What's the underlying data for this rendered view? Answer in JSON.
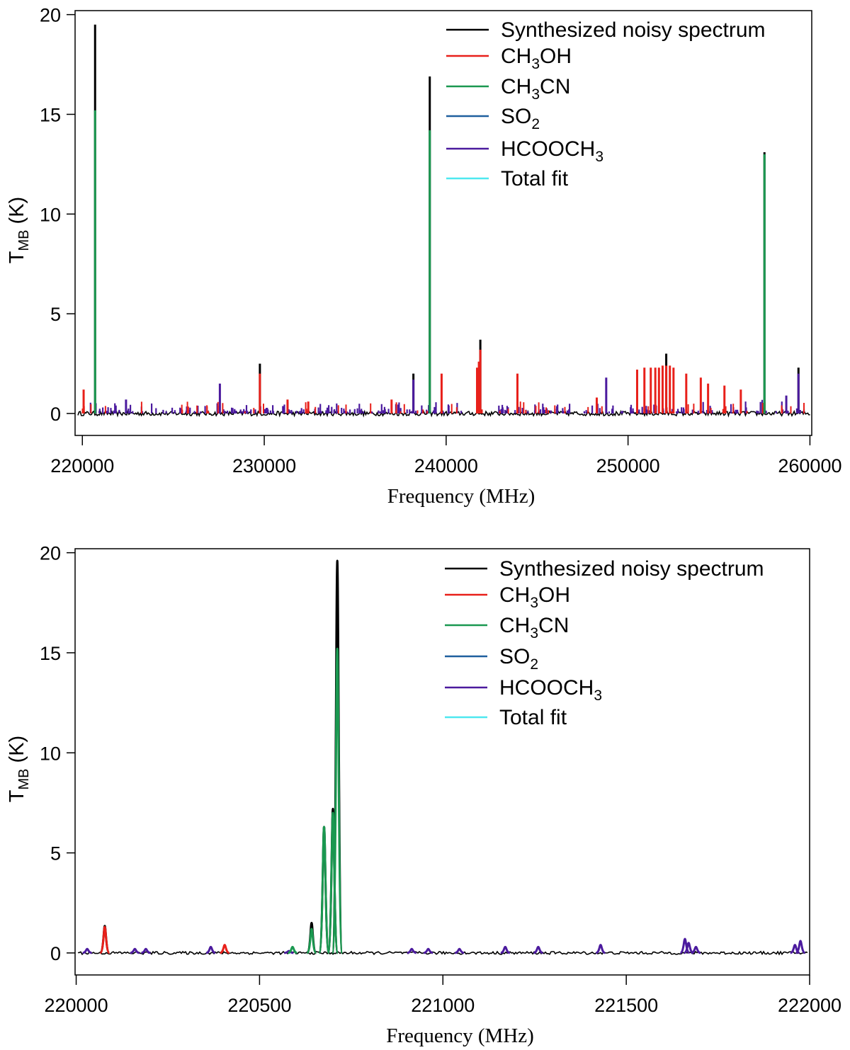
{
  "legend": [
    {
      "name": "Synthesized noisy spectrum",
      "color": "#000000"
    },
    {
      "name": "CH3OH",
      "color": "#e8201a"
    },
    {
      "name": "CH3CN",
      "color": "#1a9850"
    },
    {
      "name": "SO2",
      "color": "#1f5f9e"
    },
    {
      "name": "HCOOCH3",
      "color": "#4b1a9e"
    },
    {
      "name": "Total fit",
      "color": "#4ee8f0"
    }
  ],
  "legend_parts": {
    "ch3oh": [
      "CH",
      "3",
      "OH"
    ],
    "ch3cn": [
      "CH",
      "3",
      "CN"
    ],
    "so2": [
      "SO",
      "2"
    ],
    "hcooch3": [
      "HCOOCH",
      "3"
    ]
  },
  "ylabel_parts": {
    "main": "T",
    "sub": "MB",
    "unit": " (K)"
  },
  "chart_data": [
    {
      "type": "line",
      "title": "",
      "xlabel": "Frequency (MHz)",
      "ylabel": "T_MB (K)",
      "xlim": [
        219600,
        260100
      ],
      "ylim": [
        -1.1,
        20.2
      ],
      "xticks": [
        "220000",
        "230000",
        "240000",
        "250000",
        "260000"
      ],
      "xtick_values": [
        220000,
        230000,
        240000,
        250000,
        260000
      ],
      "yticks": [
        "0",
        "5",
        "10",
        "15",
        "20"
      ],
      "ytick_values": [
        0,
        5,
        10,
        15,
        20
      ],
      "peaks": {
        "CH3CN": [
          [
            220700,
            15.2
          ],
          [
            239100,
            14.2
          ],
          [
            257500,
            13.0
          ]
        ],
        "CH3OH": [
          [
            220070,
            1.2
          ],
          [
            229760,
            2.0
          ],
          [
            231280,
            0.7
          ],
          [
            232420,
            0.6
          ],
          [
            237000,
            0.7
          ],
          [
            239750,
            2.0
          ],
          [
            241700,
            2.3
          ],
          [
            241800,
            2.6
          ],
          [
            241880,
            3.2
          ],
          [
            243920,
            2.0
          ],
          [
            248280,
            0.8
          ],
          [
            250500,
            2.2
          ],
          [
            250900,
            2.3
          ],
          [
            251250,
            2.3
          ],
          [
            251500,
            2.3
          ],
          [
            251700,
            2.3
          ],
          [
            251900,
            2.4
          ],
          [
            252100,
            2.4
          ],
          [
            252300,
            2.4
          ],
          [
            252500,
            2.3
          ],
          [
            253200,
            2.0
          ],
          [
            254000,
            1.8
          ],
          [
            254400,
            1.5
          ],
          [
            255300,
            1.4
          ],
          [
            256200,
            1.2
          ]
        ],
        "HCOOCH3": [
          [
            222400,
            0.7
          ],
          [
            227560,
            1.5
          ],
          [
            238200,
            1.7
          ],
          [
            248800,
            1.8
          ],
          [
            258700,
            0.9
          ],
          [
            259370,
            2.0
          ]
        ],
        "Synthesized noisy spectrum": [
          [
            220700,
            19.5
          ],
          [
            239100,
            16.9
          ],
          [
            257500,
            13.1
          ],
          [
            229760,
            2.5
          ],
          [
            241880,
            3.7
          ],
          [
            252100,
            3.0
          ],
          [
            238200,
            2.0
          ],
          [
            259370,
            2.3
          ]
        ]
      }
    },
    {
      "type": "line",
      "title": "",
      "xlabel": "Frequency (MHz)",
      "ylabel": "T_MB (K)",
      "xlim": [
        219997,
        222000
      ],
      "ylim": [
        -1.1,
        20.2
      ],
      "xticks": [
        "220000",
        "220500",
        "221000",
        "221500",
        "222000"
      ],
      "xtick_values": [
        220000,
        220500,
        221000,
        221500,
        222000
      ],
      "yticks": [
        "0",
        "5",
        "10",
        "15",
        "20"
      ],
      "ytick_values": [
        0,
        5,
        10,
        15,
        20
      ],
      "peaks": {
        "CH3CN": [
          [
            220590,
            0.3
          ],
          [
            220642,
            1.2
          ],
          [
            220676,
            6.3
          ],
          [
            220700,
            7.0
          ],
          [
            220712,
            15.2
          ]
        ],
        "CH3OH": [
          [
            220078,
            1.3
          ],
          [
            220405,
            0.4
          ]
        ],
        "HCOOCH3": [
          [
            220030,
            0.2
          ],
          [
            220160,
            0.2
          ],
          [
            220190,
            0.2
          ],
          [
            220367,
            0.3
          ],
          [
            220580,
            0.1
          ],
          [
            220915,
            0.2
          ],
          [
            220960,
            0.2
          ],
          [
            221045,
            0.2
          ],
          [
            221170,
            0.3
          ],
          [
            221260,
            0.3
          ],
          [
            221430,
            0.4
          ],
          [
            221660,
            0.7
          ],
          [
            221670,
            0.5
          ],
          [
            221690,
            0.3
          ],
          [
            221960,
            0.4
          ],
          [
            221975,
            0.6
          ]
        ],
        "Synthesized noisy spectrum": [
          [
            220078,
            1.35
          ],
          [
            220642,
            1.5
          ],
          [
            220676,
            6.3
          ],
          [
            220700,
            7.2
          ],
          [
            220712,
            19.6
          ]
        ]
      }
    }
  ]
}
